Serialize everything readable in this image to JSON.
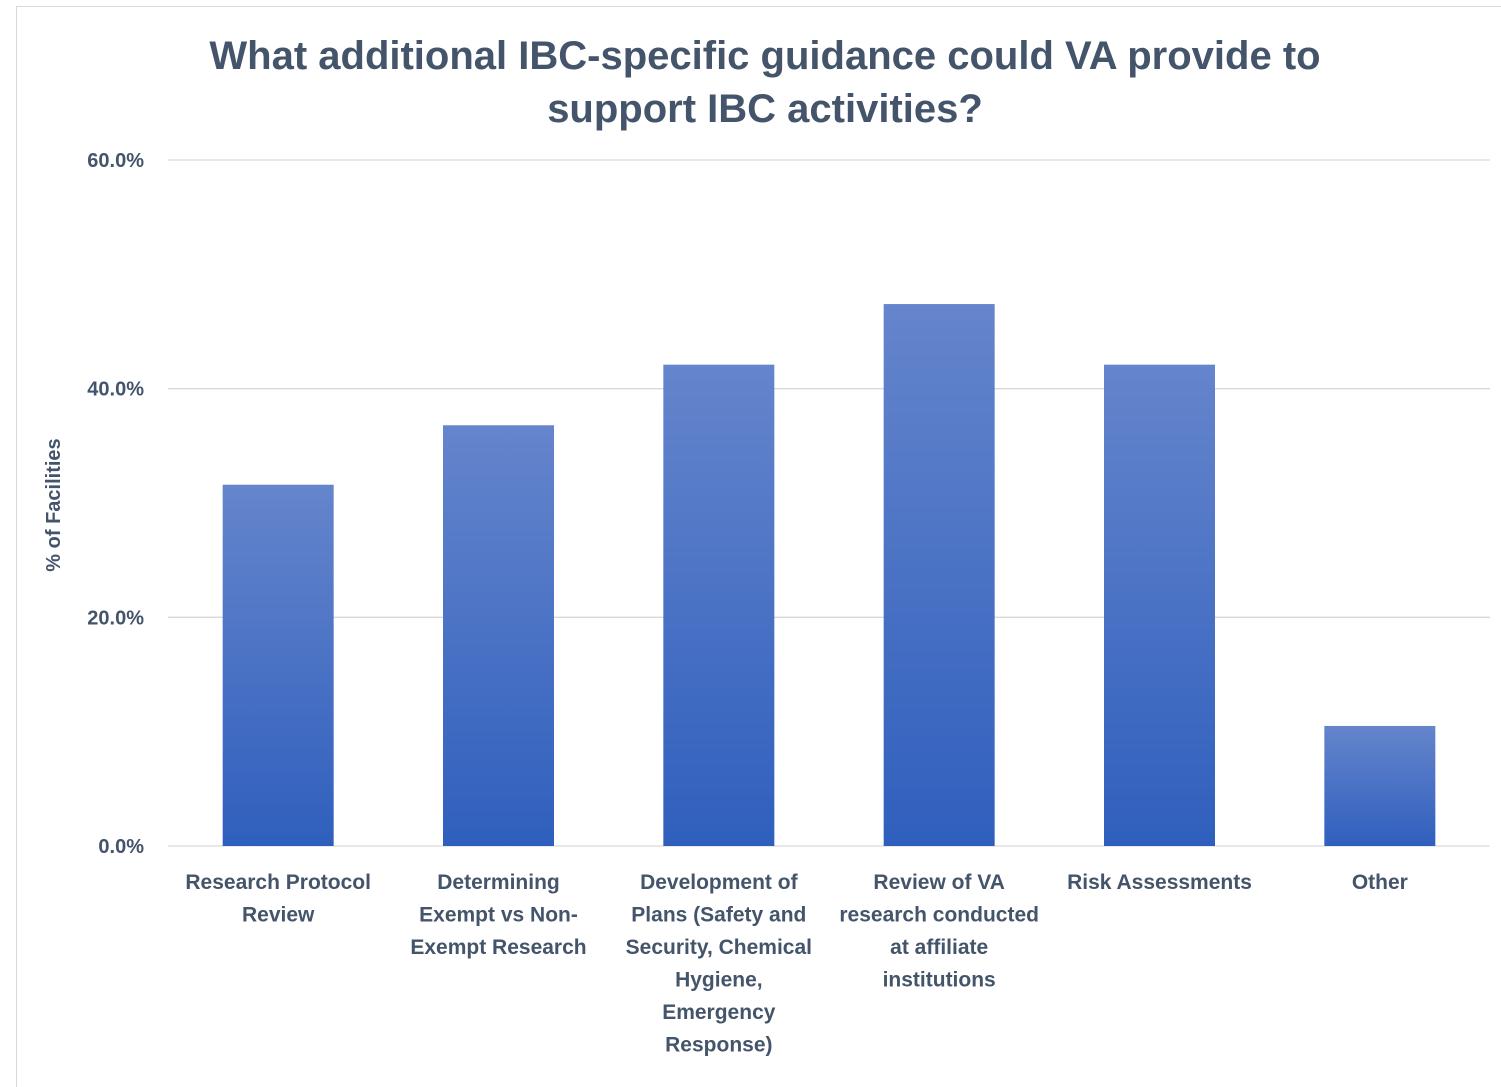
{
  "chart_data": {
    "type": "bar",
    "title": "What additional IBC-specific guidance could VA provide to support IBC activities?",
    "ylabel": "% of Facilities",
    "xlabel": "",
    "ylim": [
      0,
      60
    ],
    "yticks": [
      "0.0%",
      "20.0%",
      "40.0%",
      "60.0%"
    ],
    "ytick_values": [
      0,
      20,
      40,
      60
    ],
    "categories": [
      [
        "Research Protocol",
        "Review"
      ],
      [
        "Determining",
        "Exempt vs Non-",
        "Exempt Research"
      ],
      [
        "Development of",
        "Plans (Safety and",
        "Security, Chemical",
        "Hygiene,",
        "Emergency",
        "Response)"
      ],
      [
        "Review of VA",
        "research conducted",
        "at affiliate",
        "institutions"
      ],
      [
        "Risk Assessments"
      ],
      [
        "Other"
      ]
    ],
    "values": [
      31.6,
      36.8,
      42.1,
      47.4,
      42.1,
      10.5
    ],
    "grid": true,
    "legend": "none",
    "colors": {
      "bar_top": "#6585cc",
      "bar_bottom": "#2f5fbd",
      "grid": "#d9d9d9",
      "text": "#44546a"
    }
  }
}
